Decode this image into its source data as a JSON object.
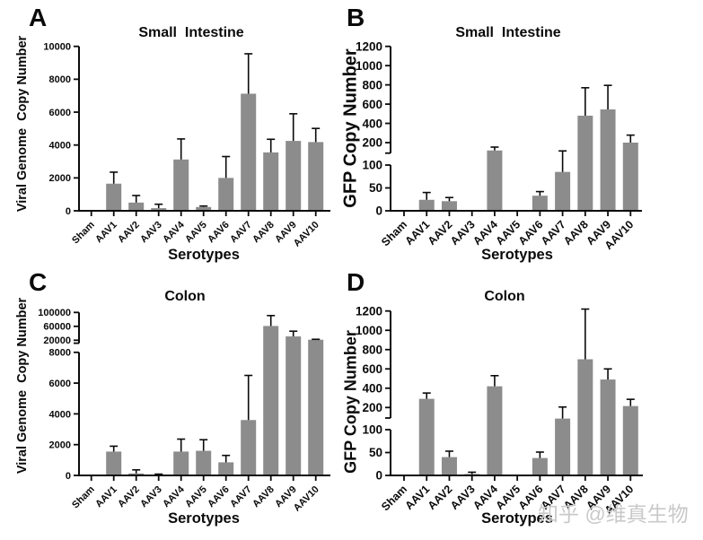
{
  "watermark": {
    "text": "知乎 @维真生物",
    "color": "#c9c9c9"
  },
  "styles": {
    "bar_color": "#8c8c8c",
    "axis_color": "#0a0a0a"
  },
  "chart_data": [
    {
      "panel": "A",
      "type": "bar",
      "title": "Small  Intestine",
      "ylabel": "Viral Genome  Copy Number",
      "xlabel": "Serotypes",
      "categories": [
        "Sham",
        "AAV1",
        "AAV2",
        "AAV3",
        "AAV4",
        "AAV5",
        "AAV6",
        "AAV7",
        "AAV8",
        "AAV9",
        "AAV10"
      ],
      "values": [
        0,
        1650,
        500,
        160,
        3120,
        230,
        2000,
        7120,
        3550,
        4250,
        4180
      ],
      "errors": [
        0,
        700,
        430,
        240,
        1250,
        60,
        1300,
        2430,
        800,
        1650,
        830
      ],
      "y_axis": {
        "segments": [
          {
            "min": 0,
            "max": 10000,
            "ticks": [
              0,
              2000,
              4000,
              6000,
              8000,
              10000
            ]
          }
        ]
      }
    },
    {
      "panel": "B",
      "type": "bar",
      "title": "Small  Intestine",
      "ylabel": "GFP Copy Number",
      "xlabel": "Serotypes",
      "categories": [
        "Sham",
        "AAV1",
        "AAV2",
        "AAV3",
        "AAV4",
        "AAV5",
        "AAV6",
        "AAV7",
        "AAV8",
        "AAV9",
        "AAV10"
      ],
      "values": [
        0,
        24,
        21,
        0,
        165,
        0,
        33,
        85,
        480,
        545,
        200
      ],
      "errors": [
        0,
        16,
        8,
        0,
        15,
        0,
        9,
        78,
        290,
        250,
        78
      ],
      "y_axis": {
        "segments": [
          {
            "min": 0,
            "max": 100,
            "ticks": [
              0,
              50,
              100
            ]
          },
          {
            "min": 200,
            "max": 1200,
            "ticks": [
              200,
              400,
              600,
              800,
              1000,
              1200
            ]
          }
        ]
      }
    },
    {
      "panel": "C",
      "type": "bar",
      "title": "Colon",
      "ylabel": "Viral Genome  Copy Number",
      "xlabel": "Serotypes",
      "categories": [
        "Sham",
        "AAV1",
        "AAV2",
        "AAV3",
        "AAV4",
        "AAV5",
        "AAV6",
        "AAV7",
        "AAV8",
        "AAV9",
        "AAV10"
      ],
      "values": [
        0,
        1550,
        130,
        35,
        1550,
        1600,
        850,
        3600,
        61000,
        31000,
        21500
      ],
      "errors": [
        0,
        350,
        230,
        50,
        810,
        720,
        450,
        2900,
        30000,
        15000,
        1200
      ],
      "y_axis": {
        "segments": [
          {
            "min": 0,
            "max": 8000,
            "ticks": [
              0,
              2000,
              4000,
              6000,
              8000
            ]
          },
          {
            "min": 20000,
            "max": 100000,
            "ticks": [
              20000,
              60000,
              100000
            ]
          }
        ]
      }
    },
    {
      "panel": "D",
      "type": "bar",
      "title": "Colon",
      "ylabel": "GFP Copy Number",
      "xlabel": "Serotypes",
      "categories": [
        "Sham",
        "AAV1",
        "AAV2",
        "AAV3",
        "AAV4",
        "AAV5",
        "AAV6",
        "AAV7",
        "AAV8",
        "AAV9",
        "AAV10"
      ],
      "values": [
        0,
        290,
        40,
        3,
        420,
        0,
        38,
        150,
        700,
        490,
        215
      ],
      "errors": [
        0,
        60,
        13,
        4,
        110,
        0,
        13,
        55,
        520,
        110,
        70
      ],
      "y_axis": {
        "segments": [
          {
            "min": 0,
            "max": 100,
            "ticks": [
              0,
              50,
              100
            ]
          },
          {
            "min": 200,
            "max": 1200,
            "ticks": [
              200,
              400,
              600,
              800,
              1000,
              1200
            ]
          }
        ]
      }
    }
  ]
}
